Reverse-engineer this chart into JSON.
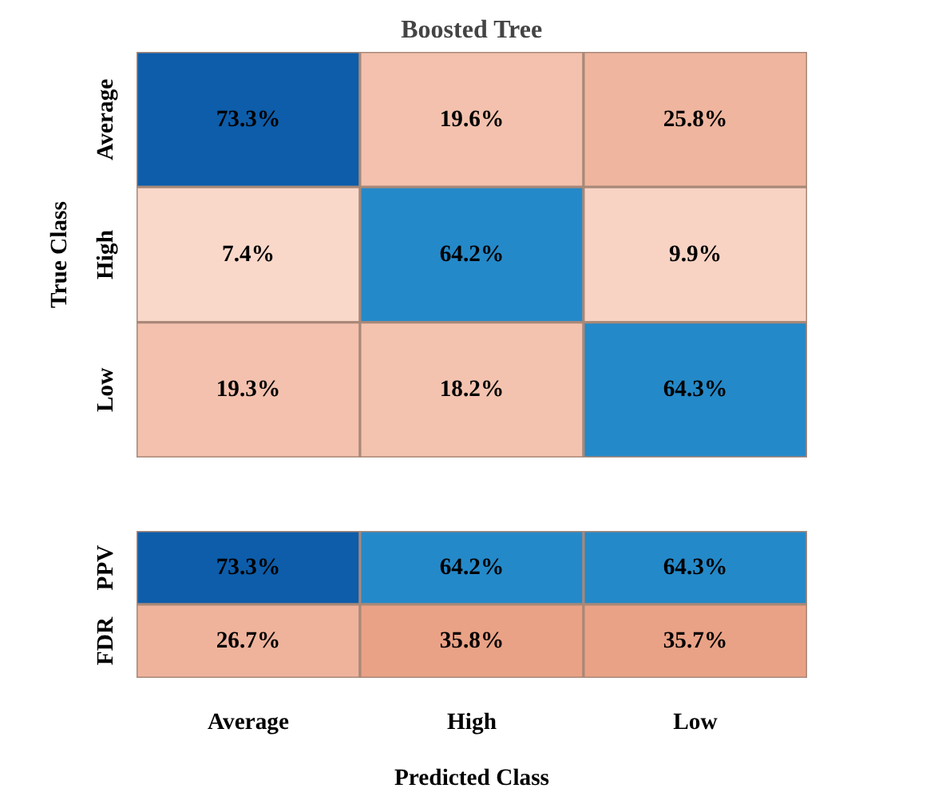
{
  "chart_data": [
    {
      "type": "heatmap",
      "title": "Boosted Tree",
      "ylabel": "True Class",
      "tick_labels": "y",
      "categories": [
        null,
        null,
        null
      ],
      "y_categories": [
        "Average",
        "High",
        "Low"
      ],
      "cells": [
        [
          73.3,
          19.6,
          25.8
        ],
        [
          7.4,
          64.2,
          9.9
        ],
        [
          19.3,
          18.2,
          64.3
        ]
      ],
      "cell_labels": [
        [
          "73.3%",
          "19.6%",
          "25.8%"
        ],
        [
          "7.4%",
          "64.2%",
          "9.9%"
        ],
        [
          "19.3%",
          "18.2%",
          "64.3%"
        ]
      ]
    },
    {
      "type": "heatmap",
      "xlabel": "Predicted Class",
      "categories": [
        "Average",
        "High",
        "Low"
      ],
      "y_categories": [
        "PPV",
        "FDR"
      ],
      "cells": [
        [
          73.3,
          64.2,
          64.3
        ],
        [
          26.7,
          35.8,
          35.7
        ]
      ],
      "cell_labels": [
        [
          "73.3%",
          "64.2%",
          "64.3%"
        ],
        [
          "26.7%",
          "35.8%",
          "35.7%"
        ]
      ]
    }
  ]
}
